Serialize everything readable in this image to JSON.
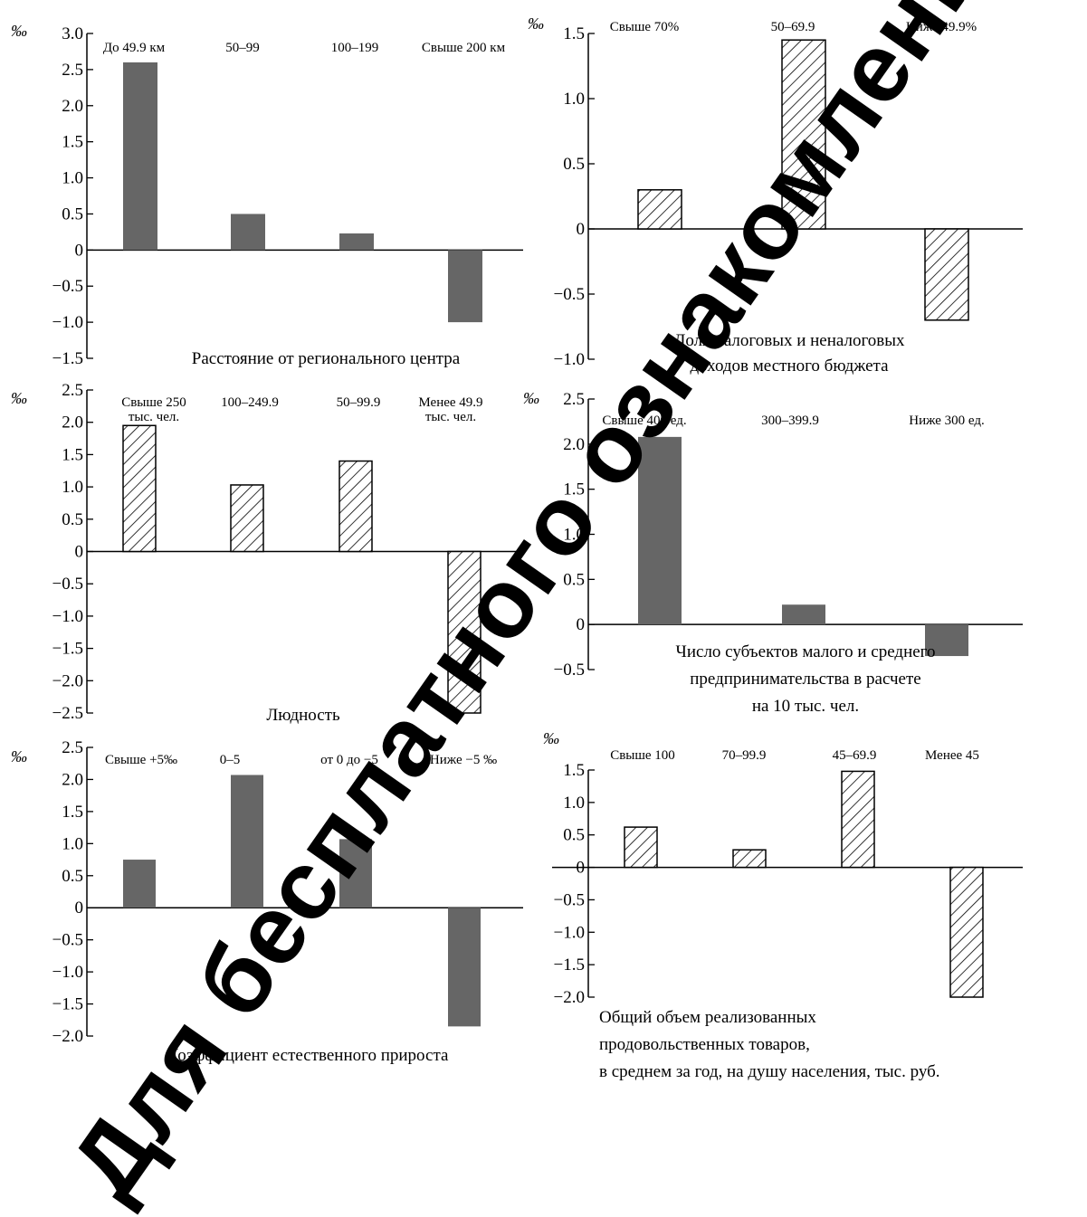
{
  "watermark": "Для бесплатного ознакомления",
  "chart_data": [
    {
      "type": "bar",
      "unit_label": "‰",
      "title": [
        "Расстояние от регионального центра"
      ],
      "categories": [
        [
          "До 49.9 км"
        ],
        [
          "50–99"
        ],
        [
          "100–199"
        ],
        [
          "Свыше 200 км"
        ]
      ],
      "values": [
        2.6,
        0.5,
        0.23,
        -1.0
      ],
      "ylim": [
        -1.5,
        3.0
      ],
      "yticks": [
        "3.0",
        "2.5",
        "2.0",
        "1.5",
        "1.0",
        "0.5",
        "0",
        "−0.5",
        "−1.0",
        "−1.5"
      ],
      "fill": "solid",
      "bar_color": "#666666"
    },
    {
      "type": "bar",
      "unit_label": "‰",
      "title": [
        "Доля налоговых и неналоговых",
        "доходов местного бюджета"
      ],
      "categories": [
        [
          "Свыше 70%"
        ],
        [
          "50–69.9"
        ],
        [
          "Ниже 49.9%"
        ]
      ],
      "values": [
        0.3,
        1.45,
        -0.7
      ],
      "ylim": [
        -1.0,
        1.5
      ],
      "yticks": [
        "1.5",
        "1.0",
        "0.5",
        "0",
        "−0.5",
        "−1.0"
      ],
      "fill": "hatched",
      "bar_color": "#000000"
    },
    {
      "type": "bar",
      "unit_label": "‰",
      "title": [
        "Людность"
      ],
      "categories": [
        [
          "Свыше 250",
          "тыс. чел."
        ],
        [
          "100–249.9"
        ],
        [
          "50–99.9"
        ],
        [
          "Менее 49.9",
          "тыс. чел."
        ]
      ],
      "values": [
        1.95,
        1.03,
        1.4,
        -2.5
      ],
      "ylim": [
        -2.5,
        2.5
      ],
      "yticks": [
        "2.5",
        "2.0",
        "1.5",
        "1.0",
        "0.5",
        "0",
        "−0.5",
        "−1.0",
        "−1.5",
        "−2.0",
        "−2.5"
      ],
      "fill": "hatched",
      "bar_color": "#000000"
    },
    {
      "type": "bar",
      "unit_label": "‰",
      "title": [
        "Число субъектов малого и среднего",
        "предпринимательства в расчете",
        "на 10 тыс. чел."
      ],
      "categories": [
        [
          "Свыше 400 ед."
        ],
        [
          "300–399.9"
        ],
        [
          "Ниже 300 ед."
        ]
      ],
      "values": [
        2.08,
        0.22,
        -0.35
      ],
      "ylim": [
        -0.5,
        2.5
      ],
      "yticks": [
        "2.5",
        "2.0",
        "1.5",
        "1.0",
        "0.5",
        "0",
        "−0.5"
      ],
      "fill": "solid",
      "bar_color": "#666666"
    },
    {
      "type": "bar",
      "unit_label": "‰",
      "title": [
        "Коэффициент естественного прироста"
      ],
      "categories": [
        [
          "Свыше +5‰"
        ],
        [
          "0–5"
        ],
        [
          "от 0 до  −5"
        ],
        [
          "Ниже −5 ‰"
        ]
      ],
      "values": [
        0.75,
        2.07,
        1.07,
        -1.85
      ],
      "ylim": [
        -2.0,
        2.5
      ],
      "yticks": [
        "2.5",
        "2.0",
        "1.5",
        "1.0",
        "0.5",
        "0",
        "−0.5",
        "−1.0",
        "−1.5",
        "−2.0"
      ],
      "fill": "solid",
      "bar_color": "#666666"
    },
    {
      "type": "bar",
      "unit_label": "‰",
      "title": [
        "Общий объем реализованных",
        "продовольственных товаров,",
        "в среднем за год, на душу населения, тыс. руб."
      ],
      "categories": [
        [
          "Свыше 100"
        ],
        [
          "70–99.9"
        ],
        [
          "45–69.9"
        ],
        [
          "Менее 45"
        ]
      ],
      "values": [
        0.62,
        0.27,
        1.48,
        -2.0
      ],
      "ylim": [
        -2.0,
        1.5
      ],
      "yticks": [
        "1.5",
        "1.0",
        "0.5",
        "0",
        "−0.5",
        "−1.0",
        "−1.5",
        "−2.0"
      ],
      "fill": "hatched",
      "bar_color": "#000000"
    }
  ]
}
